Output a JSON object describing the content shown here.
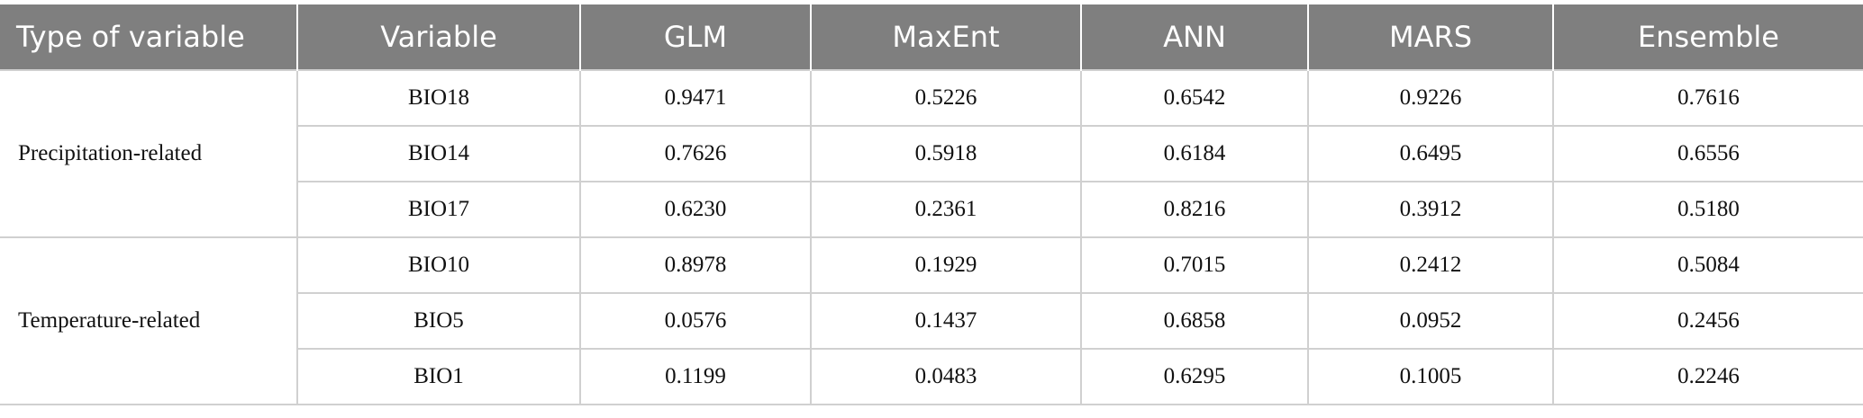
{
  "table": {
    "columns": [
      "Type of variable",
      "Variable",
      "GLM",
      "MaxEnt",
      "ANN",
      "MARS",
      "Ensemble"
    ],
    "groups": [
      {
        "label": "Precipitation-related",
        "rows": [
          [
            "BIO18",
            "0.9471",
            "0.5226",
            "0.6542",
            "0.9226",
            "0.7616"
          ],
          [
            "BIO14",
            "0.7626",
            "0.5918",
            "0.6184",
            "0.6495",
            "0.6556"
          ],
          [
            "BIO17",
            "0.6230",
            "0.2361",
            "0.8216",
            "0.3912",
            "0.5180"
          ]
        ]
      },
      {
        "label": "Temperature-related",
        "rows": [
          [
            "BIO10",
            "0.8978",
            "0.1929",
            "0.7015",
            "0.2412",
            "0.5084"
          ],
          [
            "BIO5",
            "0.0576",
            "0.1437",
            "0.6858",
            "0.0952",
            "0.2456"
          ],
          [
            "BIO1",
            "0.1199",
            "0.0483",
            "0.6295",
            "0.1005",
            "0.2246"
          ]
        ]
      }
    ]
  }
}
